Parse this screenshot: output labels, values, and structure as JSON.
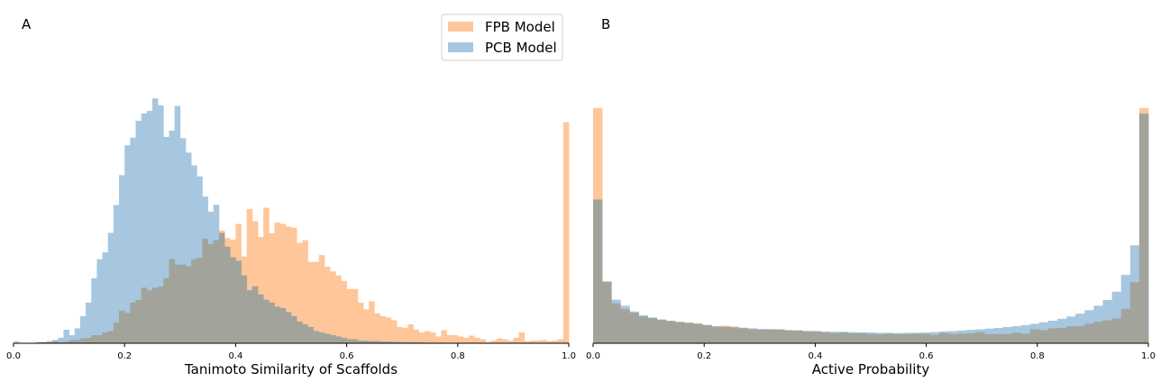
{
  "colors": {
    "fpb": "#ffc699",
    "pcb": "#a6c7df",
    "overlap": "#a2a49c",
    "axis": "#000000"
  },
  "legend": {
    "placement": "top-right of panel A",
    "items": [
      {
        "label": "FPB Model",
        "color": "#ffc699"
      },
      {
        "label": "PCB Model",
        "color": "#a6c7df"
      }
    ]
  },
  "chart_data": [
    {
      "type": "bar",
      "panel_label": "A",
      "xlabel": "Tanimoto Similarity of Scaffolds",
      "ylabel": "",
      "xlim": [
        0,
        1
      ],
      "ylim": [
        0,
        1
      ],
      "xticks": [
        "0.0",
        "0.2",
        "0.4",
        "0.6",
        "0.8",
        "1.0"
      ],
      "grid": false,
      "bin_width": 0.0125,
      "series": [
        {
          "name": "FPB Model",
          "values": [
            0.008,
            0,
            0,
            0,
            0.002,
            0.004,
            0.004,
            0.008,
            0.004,
            0.006,
            0.012,
            0.012,
            0.018,
            0.02,
            0.03,
            0.03,
            0.04,
            0.045,
            0.076,
            0.12,
            0.112,
            0.15,
            0.16,
            0.205,
            0.195,
            0.205,
            0.21,
            0.24,
            0.31,
            0.29,
            0.29,
            0.283,
            0.31,
            0.315,
            0.385,
            0.366,
            0.38,
            0.415,
            0.388,
            0.382,
            0.44,
            0.32,
            0.495,
            0.45,
            0.392,
            0.5,
            0.406,
            0.445,
            0.44,
            0.43,
            0.426,
            0.37,
            0.38,
            0.3,
            0.3,
            0.325,
            0.282,
            0.265,
            0.25,
            0.23,
            0.2,
            0.2,
            0.15,
            0.125,
            0.155,
            0.11,
            0.1,
            0.095,
            0.085,
            0.06,
            0.057,
            0.07,
            0.05,
            0.04,
            0.045,
            0.04,
            0.025,
            0.048,
            0.03,
            0.03,
            0.025,
            0.02,
            0.028,
            0.02,
            0.015,
            0.005,
            0.01,
            0.018,
            0.015,
            0.01,
            0.02,
            0.04,
            0.008,
            0.01,
            0.01,
            0.012,
            0.008,
            0.01,
            0.015,
            0.815
          ]
        },
        {
          "name": "PCB Model",
          "values": [
            0,
            0,
            0,
            0,
            0.005,
            0.004,
            0.008,
            0.012,
            0.02,
            0.05,
            0.03,
            0.055,
            0.1,
            0.15,
            0.24,
            0.31,
            0.335,
            0.407,
            0.51,
            0.62,
            0.73,
            0.758,
            0.82,
            0.847,
            0.857,
            0.903,
            0.877,
            0.761,
            0.784,
            0.875,
            0.756,
            0.703,
            0.656,
            0.615,
            0.541,
            0.485,
            0.511,
            0.407,
            0.356,
            0.317,
            0.304,
            0.25,
            0.196,
            0.21,
            0.18,
            0.16,
            0.15,
            0.135,
            0.13,
            0.115,
            0.1,
            0.08,
            0.07,
            0.06,
            0.045,
            0.04,
            0.035,
            0.03,
            0.025,
            0.02,
            0.015,
            0.015,
            0.01,
            0.01,
            0.008,
            0.008,
            0.006,
            0.006,
            0.005,
            0.005,
            0.004,
            0.004,
            0.003,
            0.003,
            0.002,
            0.002,
            0.002,
            0.002,
            0.001,
            0.001,
            0.001,
            0.001,
            0,
            0,
            0,
            0,
            0,
            0,
            0,
            0,
            0,
            0,
            0,
            0,
            0,
            0,
            0,
            0,
            0,
            0
          ]
        }
      ]
    },
    {
      "type": "bar",
      "panel_label": "B",
      "xlabel": "Active Probability",
      "ylabel": "",
      "xlim": [
        0,
        1
      ],
      "ylim": [
        0,
        1
      ],
      "xticks": [
        "0.0",
        "0.2",
        "0.4",
        "0.6",
        "0.8",
        "1.0"
      ],
      "grid": false,
      "bin_width": 0.0125,
      "series": [
        {
          "name": "FPB Model",
          "values": [
            0.74,
            0.195,
            0.125,
            0.107,
            0.096,
            0.084,
            0.079,
            0.074,
            0.071,
            0.068,
            0.065,
            0.063,
            0.058,
            0.052,
            0.055,
            0.053,
            0.047,
            0.044,
            0.043,
            0.044,
            0.044,
            0.041,
            0.041,
            0.037,
            0.038,
            0.034,
            0.032,
            0.034,
            0.031,
            0.032,
            0.029,
            0.028,
            0.03,
            0.029,
            0.029,
            0.03,
            0.029,
            0.026,
            0.032,
            0.029,
            0.03,
            0.031,
            0.035,
            0.029,
            0.029,
            0.029,
            0.033,
            0.03,
            0.044,
            0.041,
            0.047,
            0.048,
            0.053,
            0.054,
            0.062,
            0.068,
            0.072,
            0.078,
            0.108,
            0.192,
            0.74
          ]
        },
        {
          "name": "PCB Model",
          "values": [
            0.452,
            0.193,
            0.137,
            0.118,
            0.1,
            0.088,
            0.081,
            0.075,
            0.07,
            0.066,
            0.064,
            0.061,
            0.057,
            0.054,
            0.052,
            0.05,
            0.049,
            0.047,
            0.045,
            0.044,
            0.043,
            0.041,
            0.04,
            0.039,
            0.038,
            0.037,
            0.036,
            0.036,
            0.035,
            0.034,
            0.034,
            0.033,
            0.033,
            0.032,
            0.033,
            0.033,
            0.034,
            0.035,
            0.037,
            0.038,
            0.04,
            0.042,
            0.044,
            0.046,
            0.048,
            0.051,
            0.054,
            0.057,
            0.061,
            0.066,
            0.071,
            0.077,
            0.084,
            0.093,
            0.104,
            0.118,
            0.136,
            0.162,
            0.215,
            0.308,
            0.722
          ]
        }
      ]
    }
  ]
}
